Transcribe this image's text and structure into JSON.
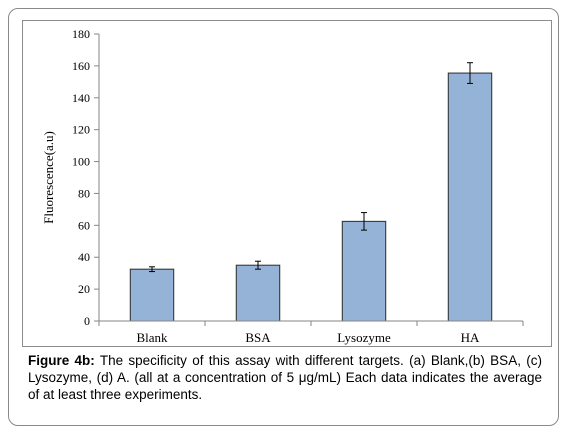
{
  "chart_data": {
    "type": "bar",
    "categories": [
      "Blank",
      "BSA",
      "Lysozyme",
      "HA"
    ],
    "values": [
      32.5,
      35,
      62.5,
      155.5
    ],
    "errors": [
      1.5,
      2.5,
      5.5,
      6.5
    ],
    "ylabel": "Fluorescence(a.u)",
    "ylim": [
      0,
      180
    ],
    "yticks": [
      0,
      20,
      40,
      60,
      80,
      100,
      120,
      140,
      160,
      180
    ],
    "grid": false,
    "bar_color": "#95b3d7",
    "bar_edge_color": "#2b2b2b"
  },
  "caption": {
    "label": "Figure 4b:",
    "text": " The specificity of this assay with different targets. (a) Blank,(b) BSA, (c) Lysozyme, (d) A. (all at a concentration of 5 μg/mL) Each data indicates the average of at least three experiments."
  }
}
